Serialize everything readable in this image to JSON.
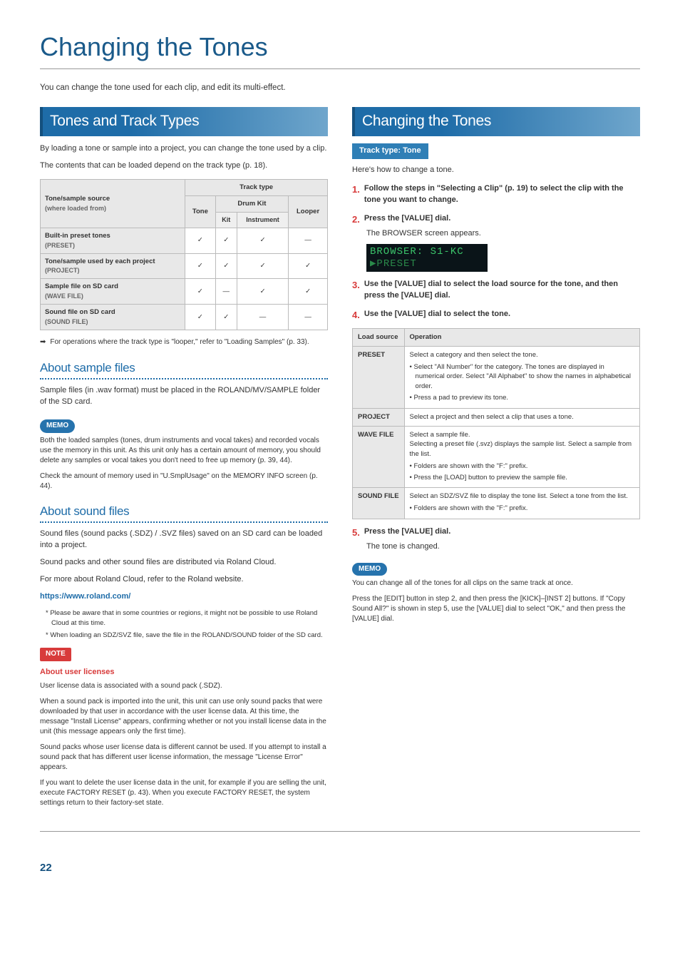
{
  "page_title": "Changing the Tones",
  "intro": "You can change the tone used for each clip, and edit its multi-effect.",
  "page_number": "22",
  "left": {
    "section_title": "Tones and Track Types",
    "p1": "By loading a tone or sample into a project, you can change the tone used by a clip.",
    "p2": "The contents that can be loaded depend on the track type (p. 18).",
    "table": {
      "h_source": "Tone/sample source",
      "h_source_sub": "(where loaded from)",
      "h_track": "Track type",
      "h_tone": "Tone",
      "h_drum": "Drum Kit",
      "h_drum_kit": "Kit",
      "h_drum_inst": "Instrument",
      "h_looper": "Looper",
      "rows": [
        {
          "label": "Built-in preset tones",
          "sub": "(PRESET)",
          "c": [
            "✓",
            "✓",
            "✓",
            "—"
          ]
        },
        {
          "label": "Tone/sample used by each project",
          "sub": "(PROJECT)",
          "c": [
            "✓",
            "✓",
            "✓",
            "✓"
          ]
        },
        {
          "label": "Sample file on SD card",
          "sub": "(WAVE FILE)",
          "c": [
            "✓",
            "—",
            "✓",
            "✓"
          ]
        },
        {
          "label": "Sound file on SD card",
          "sub": "(SOUND FILE)",
          "c": [
            "✓",
            "✓",
            "—",
            "—"
          ]
        }
      ]
    },
    "arrow_note": "For operations where the track type is \"looper,\" refer to \"Loading Samples\" (p. 33).",
    "sample_heading": "About sample files",
    "sample_p1": "Sample files (in .wav format) must be placed in the ROLAND/MV/SAMPLE folder of the SD card.",
    "memo_label": "MEMO",
    "sample_memo_p1": "Both the loaded samples (tones, drum instruments and vocal takes) and recorded vocals use the memory in this unit. As this unit only has a certain amount of memory, you should delete any samples or vocal takes you don't need to free up memory (p. 39, 44).",
    "sample_memo_p2": "Check the amount of memory used in \"U.SmplUsage\" on the MEMORY INFO screen (p. 44).",
    "sound_heading": "About sound files",
    "sound_p1": "Sound files (sound packs (.SDZ) / .SVZ files) saved on an SD card can be loaded into a project.",
    "sound_p2": "Sound packs and other sound files are distributed via Roland Cloud.",
    "sound_p3": "For more about Roland Cloud, refer to the Roland website.",
    "sound_link": "https://www.roland.com/",
    "sound_foot1": "*  Please be aware that in some countries or regions, it might not be possible to use Roland Cloud at this time.",
    "sound_foot2": "*  When loading an SDZ/SVZ file, save the file in the ROLAND/SOUND folder of the SD card.",
    "note_label": "NOTE",
    "note_title": "About user licenses",
    "note_p1": "User license data is associated with a sound pack (.SDZ).",
    "note_p2": "When a sound pack is imported into the unit, this unit can use only sound packs that were downloaded by that user in accordance with the user license data. At this time, the message \"Install License\" appears, confirming whether or not you install license data in the unit (this message appears only the first time).",
    "note_p3": "Sound packs whose user license data is different cannot be used. If you attempt to install a sound pack that has different user license information, the message \"License Error\" appears.",
    "note_p4": "If you want to delete the user license data in the unit, for example if you are selling the unit, execute FACTORY RESET (p. 43). When you execute FACTORY RESET, the system settings return to their factory-set state."
  },
  "right": {
    "section_title": "Changing the Tones",
    "track_tag": "Track type: Tone",
    "intro": "Here's how to change a tone.",
    "steps": {
      "s1": "Follow the steps in \"Selecting a Clip\" (p. 19) to select the clip with the tone you want to change.",
      "s2": "Press the [VALUE] dial.",
      "s2_sub": "The BROWSER screen appears.",
      "s3": "Use the [VALUE] dial to select the load source for the tone, and then press the [VALUE] dial.",
      "s4": "Use the [VALUE] dial to select the tone.",
      "s5": "Press the [VALUE] dial.",
      "s5_sub": "The tone is changed."
    },
    "lcd": {
      "line1": "BROWSER:   S1-KC",
      "line2": "▶PRESET"
    },
    "table": {
      "h1": "Load source",
      "h2": "Operation",
      "preset_label": "PRESET",
      "preset_1": "Select a category and then select the tone.",
      "preset_b1": "Select \"All Number\" for the category. The tones are displayed in numerical order. Select \"All Alphabet\" to show the names in alphabetical order.",
      "preset_b2": "Press a pad to preview its tone.",
      "project_label": "PROJECT",
      "project_1": "Select a project and then select a clip that uses a tone.",
      "wave_label": "WAVE FILE",
      "wave_1": "Select a sample file.",
      "wave_2": "Selecting a preset file (.svz) displays the sample list. Select a sample from the list.",
      "wave_b1": "Folders are shown with the \"F:\" prefix.",
      "wave_b2": "Press the [LOAD] button to preview the sample file.",
      "sound_label": "SOUND FILE",
      "sound_1": "Select an SDZ/SVZ file to display the tone list. Select a tone from the list.",
      "sound_b1": "Folders are shown with the \"F:\" prefix."
    },
    "memo_label": "MEMO",
    "memo_p1": "You can change all of the tones for all clips on the same track at once.",
    "memo_p2": "Press the [EDIT] button in step 2, and then press the [KICK]–[INST 2] buttons. If \"Copy Sound All?\" is shown in step 5, use the [VALUE] dial to select \"OK,\" and then press the [VALUE] dial."
  }
}
